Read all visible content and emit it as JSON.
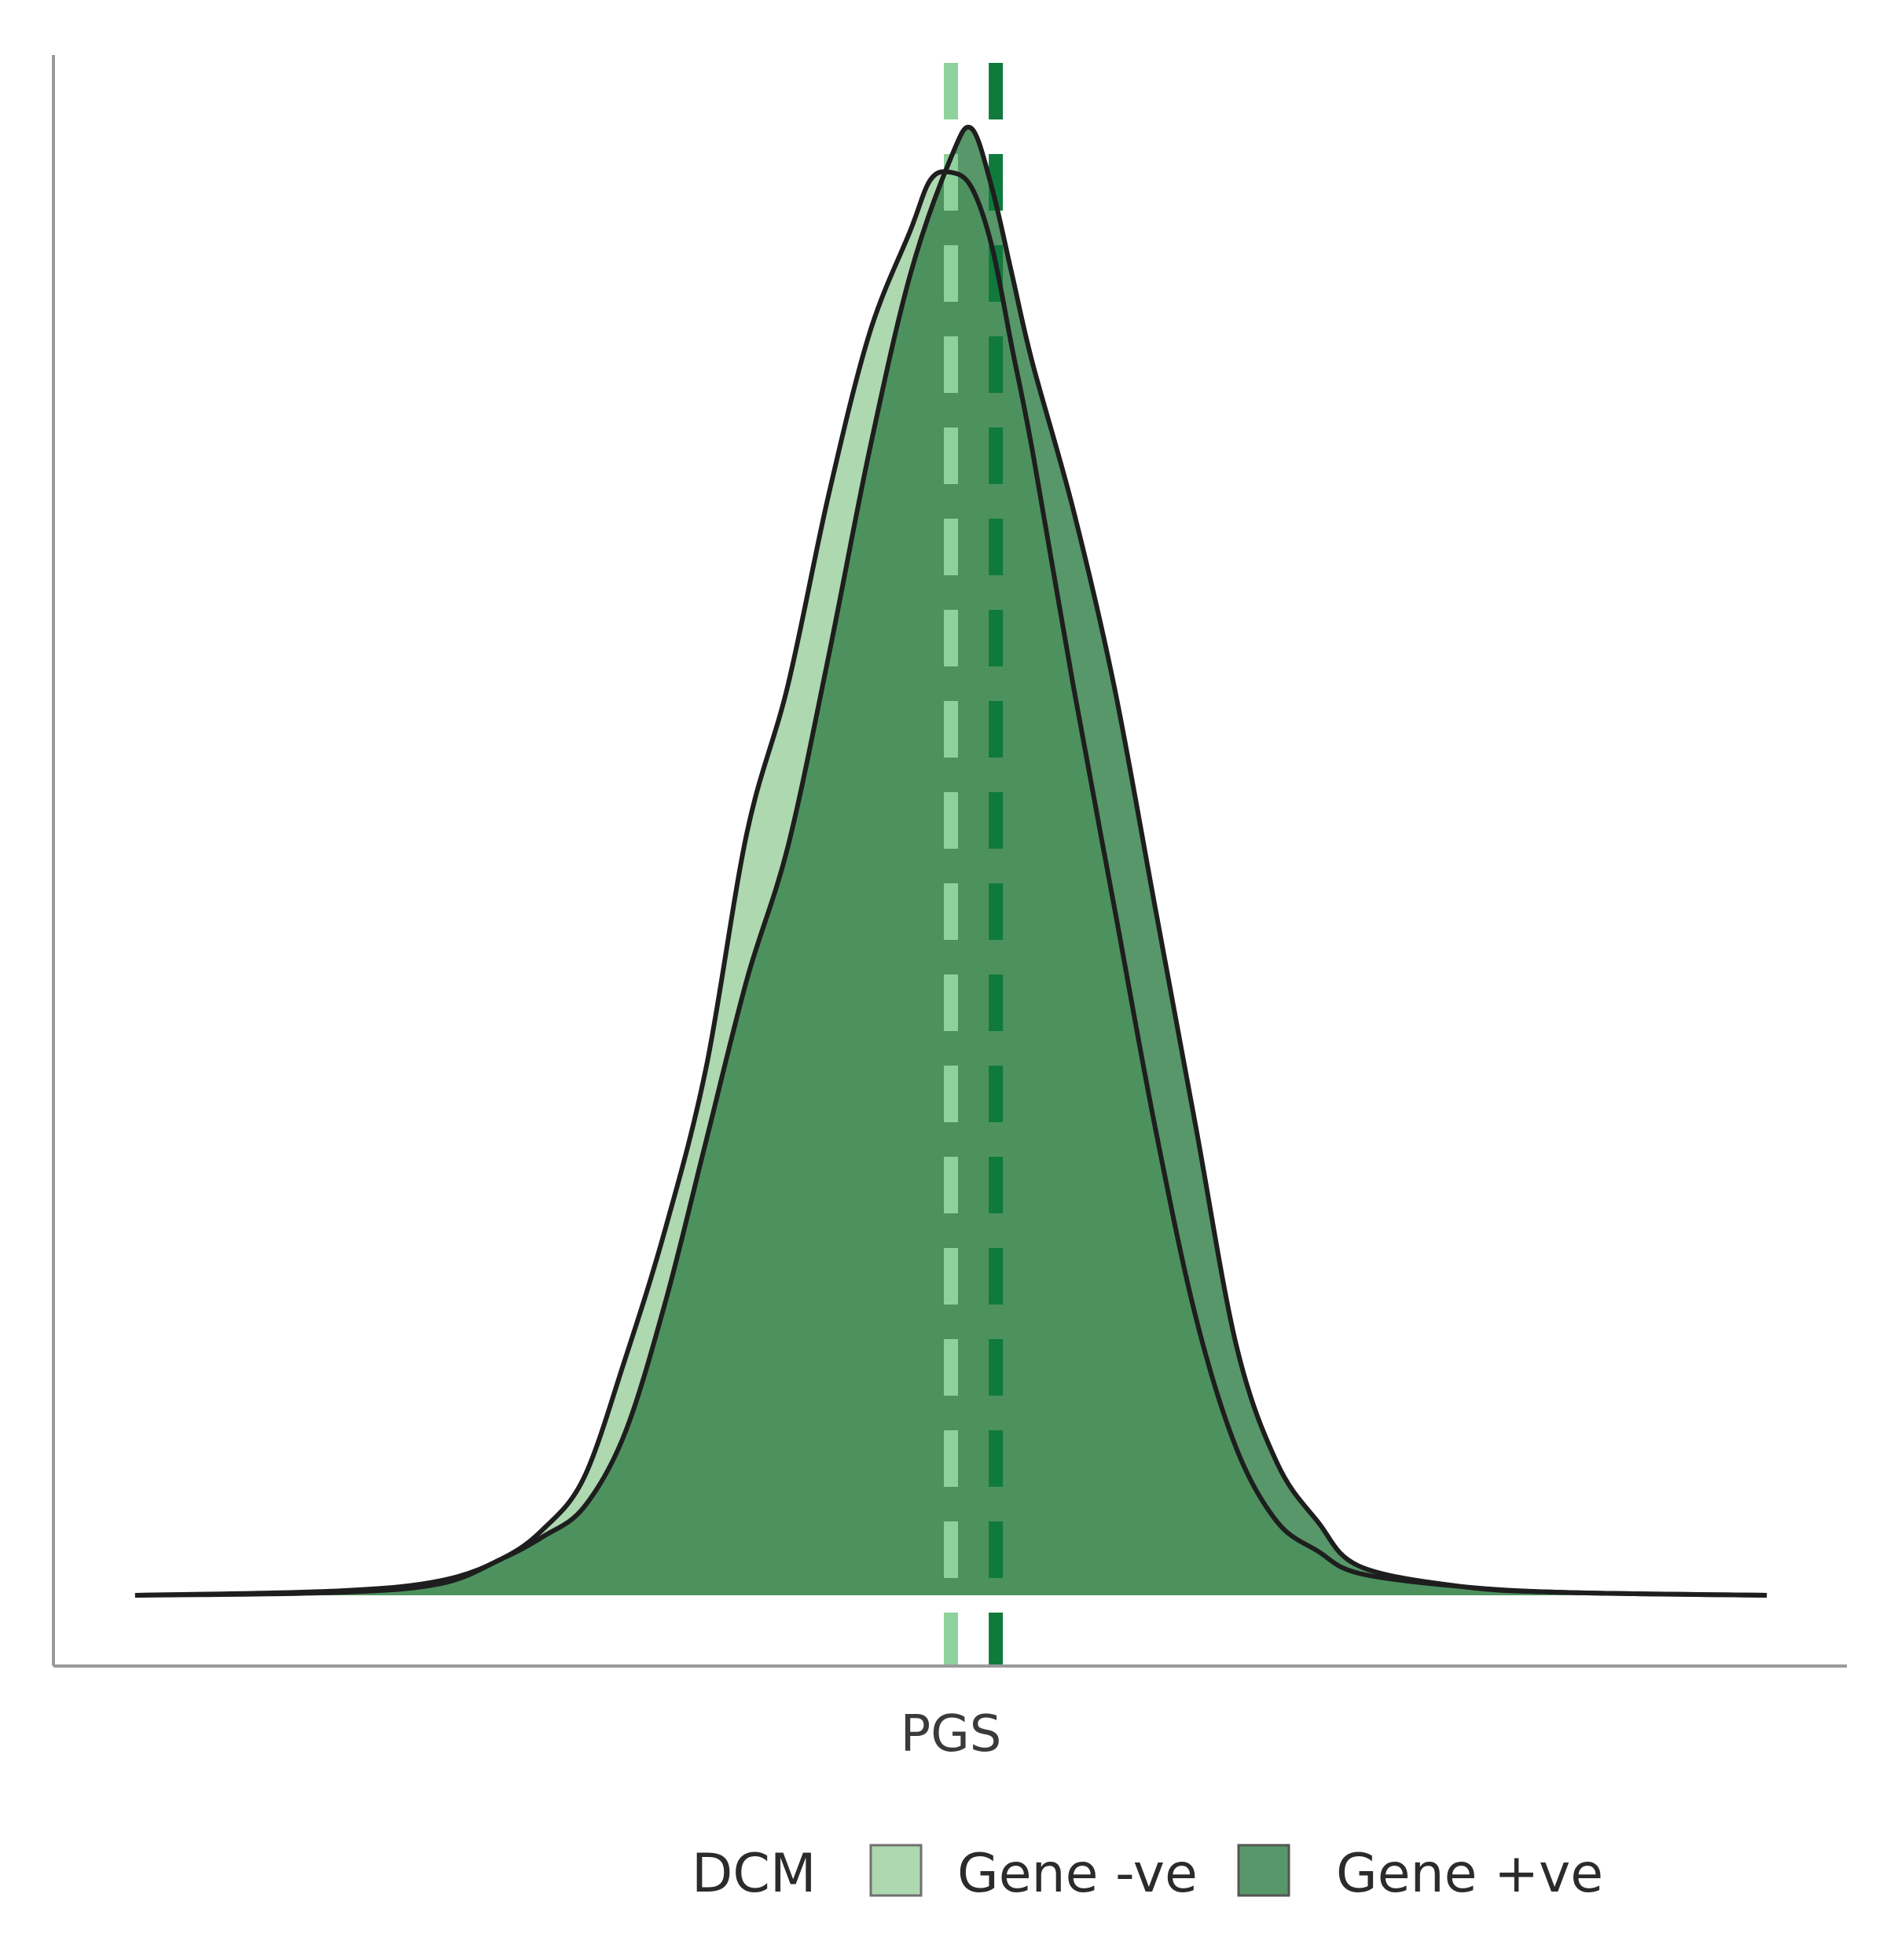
{
  "chart_data": {
    "type": "area",
    "subtype": "density",
    "title": "",
    "xlabel": "PGS",
    "ylabel": "",
    "x_ticks_shown": false,
    "y_ticks_shown": false,
    "grid": false,
    "legend": {
      "title": "DCM",
      "position": "bottom",
      "entries": [
        "Gene -ve",
        "Gene +ve"
      ]
    },
    "series": [
      {
        "name": "Gene -ve",
        "color": "#aed8b0",
        "line_color": "#1e1e1e",
        "mean_line_color": "#8fd19c",
        "mean": 0.0,
        "x": [
          -4.0,
          -3.0,
          -2.5,
          -2.2,
          -2.0,
          -1.8,
          -1.6,
          -1.4,
          -1.2,
          -1.0,
          -0.8,
          -0.6,
          -0.4,
          -0.2,
          -0.1,
          0.0,
          0.1,
          0.2,
          0.3,
          0.4,
          0.6,
          0.8,
          1.0,
          1.2,
          1.4,
          1.6,
          1.8,
          2.0,
          2.5,
          3.0,
          4.0
        ],
        "density": [
          0.0,
          0.003,
          0.01,
          0.025,
          0.045,
          0.08,
          0.16,
          0.25,
          0.36,
          0.52,
          0.62,
          0.75,
          0.86,
          0.93,
          0.965,
          0.97,
          0.96,
          0.92,
          0.85,
          0.78,
          0.62,
          0.47,
          0.32,
          0.19,
          0.1,
          0.05,
          0.03,
          0.015,
          0.006,
          0.002,
          0.0
        ]
      },
      {
        "name": "Gene +ve",
        "color": "#3d8650",
        "line_color": "#1e1e1e",
        "mean_line_color": "#0f7a3c",
        "mean": 0.22,
        "x": [
          -4.0,
          -3.0,
          -2.5,
          -2.2,
          -2.0,
          -1.8,
          -1.6,
          -1.4,
          -1.2,
          -1.0,
          -0.8,
          -0.6,
          -0.4,
          -0.2,
          0.0,
          0.1,
          0.2,
          0.3,
          0.4,
          0.6,
          0.8,
          1.0,
          1.2,
          1.4,
          1.6,
          1.8,
          2.0,
          2.5,
          3.0,
          4.0
        ],
        "density": [
          0.0,
          0.002,
          0.008,
          0.025,
          0.04,
          0.06,
          0.11,
          0.2,
          0.31,
          0.42,
          0.51,
          0.64,
          0.78,
          0.9,
          0.98,
          1.0,
          0.96,
          0.9,
          0.84,
          0.74,
          0.62,
          0.47,
          0.32,
          0.17,
          0.09,
          0.05,
          0.02,
          0.006,
          0.002,
          0.0
        ]
      }
    ],
    "xlim": [
      -4.2,
      4.2
    ],
    "ylim": [
      0,
      1.05
    ]
  }
}
